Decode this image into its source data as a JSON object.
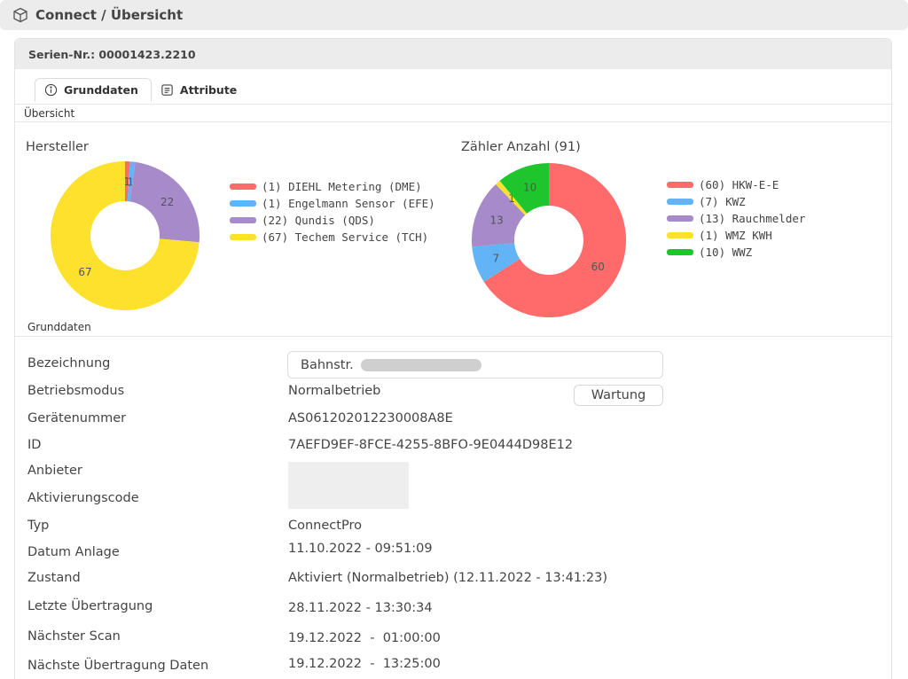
{
  "header": {
    "title": "Connect / Übersicht",
    "icon": "cube-icon"
  },
  "card": {
    "title": "Serien-Nr.: 00001423.2210"
  },
  "tabs": [
    {
      "label": "Grunddaten",
      "icon": "info-circle-icon",
      "active": true
    },
    {
      "label": "Attribute",
      "icon": "document-list-icon",
      "active": false
    }
  ],
  "sections": {
    "overview": "Übersicht",
    "basics": "Grunddaten"
  },
  "chart_data": [
    {
      "type": "pie",
      "title": "Hersteller",
      "categories": [
        "(1) DIEHL Metering (DME)",
        "(1) Engelmann Sensor (EFE)",
        "(22) Qundis (QDS)",
        "(67) Techem Service (TCH)"
      ],
      "values": [
        1,
        1,
        22,
        67
      ],
      "colors": [
        "#ff6b6b",
        "#63b4f7",
        "#a68ac9",
        "#fde12d"
      ],
      "labels": [
        "1",
        "1",
        "22",
        "67"
      ],
      "legend_position": "right"
    },
    {
      "type": "pie",
      "title": "Zähler Anzahl (91)",
      "categories": [
        "(60) HKW-E-E",
        "(7) KWZ",
        "(13) Rauchmelder",
        "(1) WMZ KWH",
        "(10) WWZ"
      ],
      "values": [
        60,
        7,
        13,
        1,
        10
      ],
      "colors": [
        "#ff6b6b",
        "#63b4f7",
        "#a68ac9",
        "#fde12d",
        "#1ec52d"
      ],
      "labels": [
        "60",
        "7",
        "13",
        "1",
        "10"
      ],
      "legend_position": "right"
    }
  ],
  "fields": {
    "bezeichnung": {
      "label": "Bezeichnung",
      "value": "Bahnstr."
    },
    "betriebsmodus": {
      "label": "Betriebsmodus",
      "value": "Normalbetrieb",
      "button": "Wartung"
    },
    "geraetenummer": {
      "label": "Gerätenummer",
      "value": "AS061202012230008A8E"
    },
    "id": {
      "label": "ID",
      "value": "7AEFD9EF-8FCE-4255-8BFO-9E0444D98E12"
    },
    "anbieter": {
      "label": "Anbieter"
    },
    "aktivierungscode": {
      "label": "Aktivierungscode"
    },
    "typ": {
      "label": "Typ",
      "value": "ConnectPro"
    },
    "datum_anlage": {
      "label": "Datum Anlage",
      "value": "11.10.2022 - 09:51:09"
    },
    "zustand": {
      "label": "Zustand",
      "value": "Aktiviert (Normalbetrieb) (12.11.2022 - 13:41:23)"
    },
    "letzte_uebertragung": {
      "label": "Letzte Übertragung",
      "value": "28.11.2022 - 13:30:34"
    },
    "naechster_scan": {
      "label": "Nächster Scan",
      "value": "19.12.2022  -  01:00:00"
    },
    "naechste_uebertragung": {
      "label": "Nächste Übertragung Daten",
      "value": "19.12.2022  -  13:25:00"
    }
  }
}
